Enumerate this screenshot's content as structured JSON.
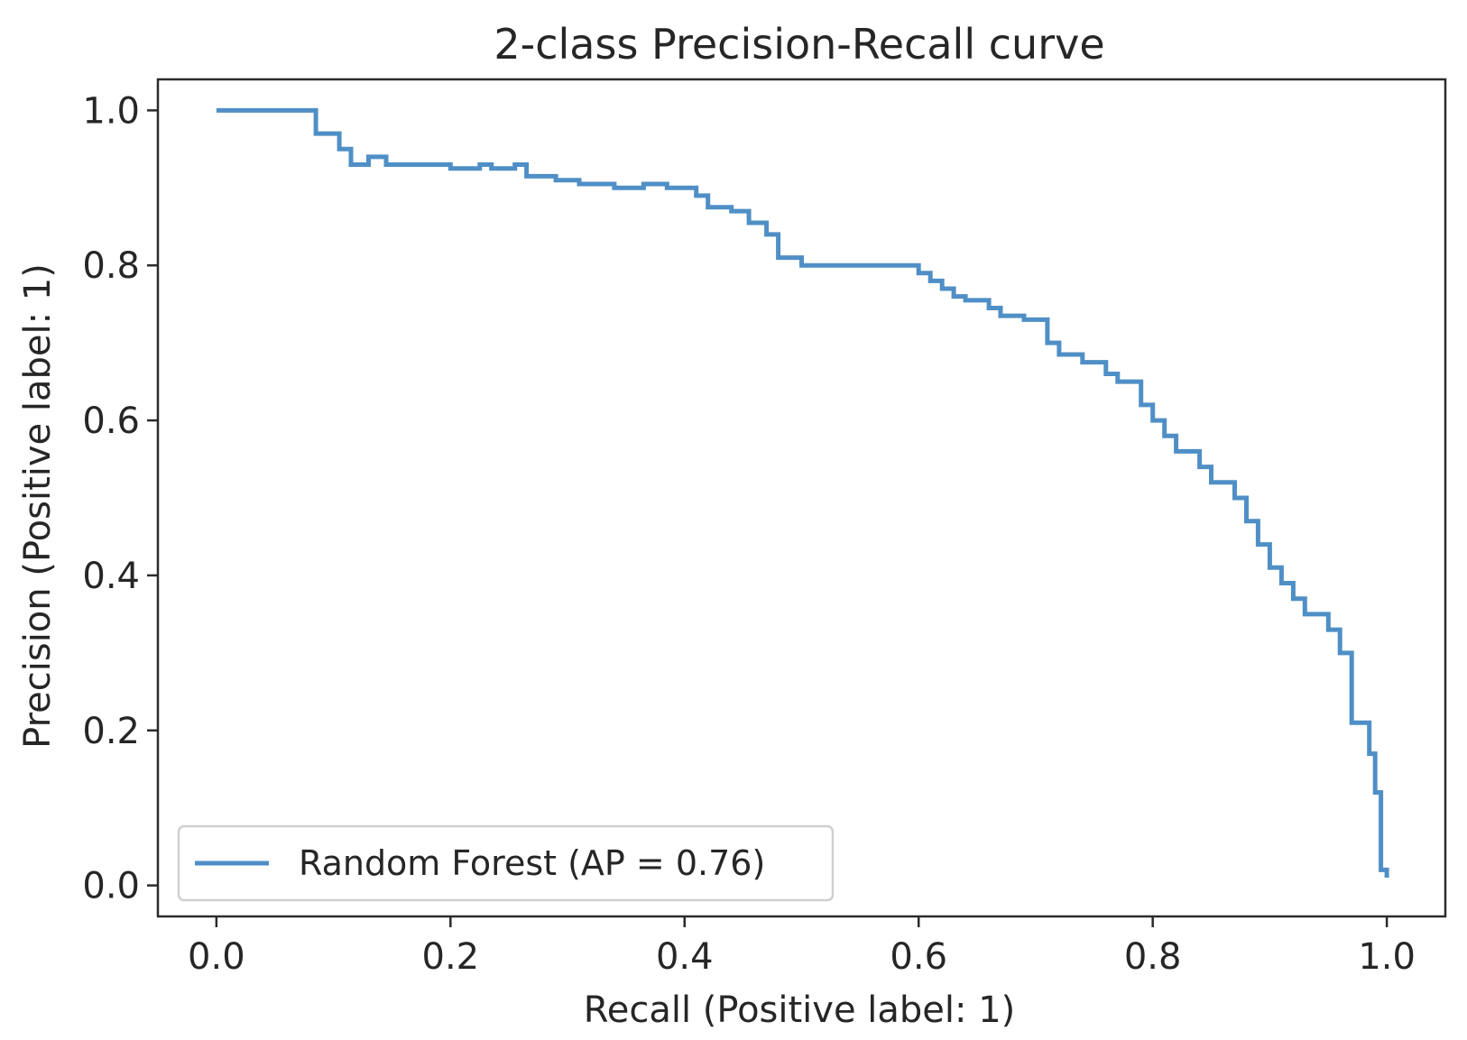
{
  "chart_data": {
    "type": "line",
    "title": "2-class Precision-Recall curve",
    "xlabel": "Recall (Positive label: 1)",
    "ylabel": "Precision (Positive label: 1)",
    "xlim": [
      -0.05,
      1.05
    ],
    "ylim": [
      -0.04,
      1.04
    ],
    "xticks": [
      0.0,
      0.2,
      0.4,
      0.6,
      0.8,
      1.0
    ],
    "yticks": [
      0.0,
      0.2,
      0.4,
      0.6,
      0.8,
      1.0
    ],
    "xtick_labels": [
      "0.0",
      "0.2",
      "0.4",
      "0.6",
      "0.8",
      "1.0"
    ],
    "ytick_labels": [
      "0.0",
      "0.2",
      "0.4",
      "0.6",
      "0.8",
      "1.0"
    ],
    "grid": false,
    "legend": {
      "entries": [
        "Random Forest (AP = 0.76)"
      ],
      "position": "lower-left"
    },
    "series": [
      {
        "name": "Random Forest (AP = 0.76)",
        "color": "#4f8fc6",
        "drawstyle": "steps-post",
        "recall": [
          0.0,
          0.085,
          0.105,
          0.115,
          0.13,
          0.145,
          0.16,
          0.175,
          0.2,
          0.225,
          0.235,
          0.255,
          0.265,
          0.29,
          0.31,
          0.34,
          0.365,
          0.385,
          0.41,
          0.42,
          0.44,
          0.455,
          0.47,
          0.48,
          0.5,
          0.6,
          0.61,
          0.62,
          0.63,
          0.64,
          0.66,
          0.67,
          0.69,
          0.71,
          0.72,
          0.74,
          0.76,
          0.77,
          0.79,
          0.8,
          0.81,
          0.82,
          0.84,
          0.85,
          0.87,
          0.88,
          0.89,
          0.9,
          0.91,
          0.92,
          0.93,
          0.95,
          0.96,
          0.97,
          0.985,
          0.99,
          0.995,
          1.0
        ],
        "precision": [
          1.0,
          0.97,
          0.95,
          0.93,
          0.94,
          0.93,
          0.93,
          0.93,
          0.925,
          0.93,
          0.925,
          0.93,
          0.915,
          0.91,
          0.905,
          0.9,
          0.905,
          0.9,
          0.89,
          0.875,
          0.87,
          0.855,
          0.84,
          0.81,
          0.8,
          0.79,
          0.78,
          0.77,
          0.76,
          0.755,
          0.745,
          0.735,
          0.73,
          0.7,
          0.685,
          0.675,
          0.66,
          0.65,
          0.62,
          0.6,
          0.58,
          0.56,
          0.54,
          0.52,
          0.5,
          0.47,
          0.44,
          0.41,
          0.39,
          0.37,
          0.35,
          0.33,
          0.3,
          0.21,
          0.17,
          0.12,
          0.02,
          0.01
        ]
      }
    ]
  }
}
